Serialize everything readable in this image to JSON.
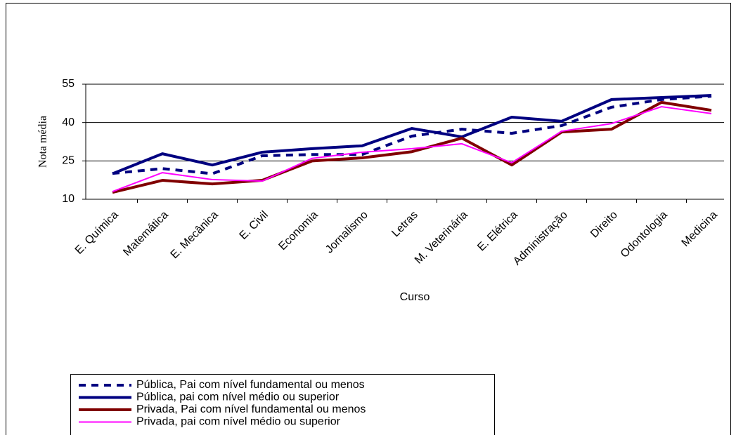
{
  "chart_data": {
    "type": "line",
    "y_label": "Nota média",
    "x_label": "Curso",
    "categories": [
      "E. Química",
      "Matemática",
      "E. Mecânica",
      "E. Civil",
      "Economia",
      "Jornalismo",
      "Letras",
      "M. Veterinária",
      "E. Elétrica",
      "Administração",
      "Direito",
      "Odontologia",
      "Medicina"
    ],
    "series": [
      {
        "name": "Pública, Pai com nível fundamental ou menos",
        "color": "#000080",
        "dashed": true,
        "values": [
          20.1,
          22,
          20,
          27,
          27.5,
          27.5,
          34.7,
          37.4,
          35.8,
          38.8,
          46,
          49,
          50.3
        ]
      },
      {
        "name": "Pública, pai com nível médio ou superior",
        "color": "#000080",
        "dashed": false,
        "values": [
          20,
          27.8,
          23.4,
          28.4,
          29.8,
          30.9,
          37.7,
          34.4,
          42.1,
          40.5,
          49,
          49.8,
          50.6
        ]
      },
      {
        "name": "Privada, Pai com nível fundamental ou menos",
        "color": "#800000",
        "dashed": false,
        "values": [
          12.7,
          17.4,
          16,
          17.4,
          25,
          26.2,
          28.6,
          33.9,
          23.4,
          36.3,
          37.4,
          47.9,
          44.8
        ]
      },
      {
        "name": "Privada, pai com nível médio ou superior",
        "color": "#ff00ff",
        "dashed": false,
        "values": [
          13,
          20.4,
          17.7,
          17.1,
          26,
          28.4,
          29.8,
          31.7,
          24.3,
          36.6,
          39.6,
          46.2,
          43.5
        ]
      }
    ],
    "ylim": [
      10,
      55
    ],
    "yticks": [
      10,
      25,
      40,
      55
    ],
    "grid": true
  }
}
